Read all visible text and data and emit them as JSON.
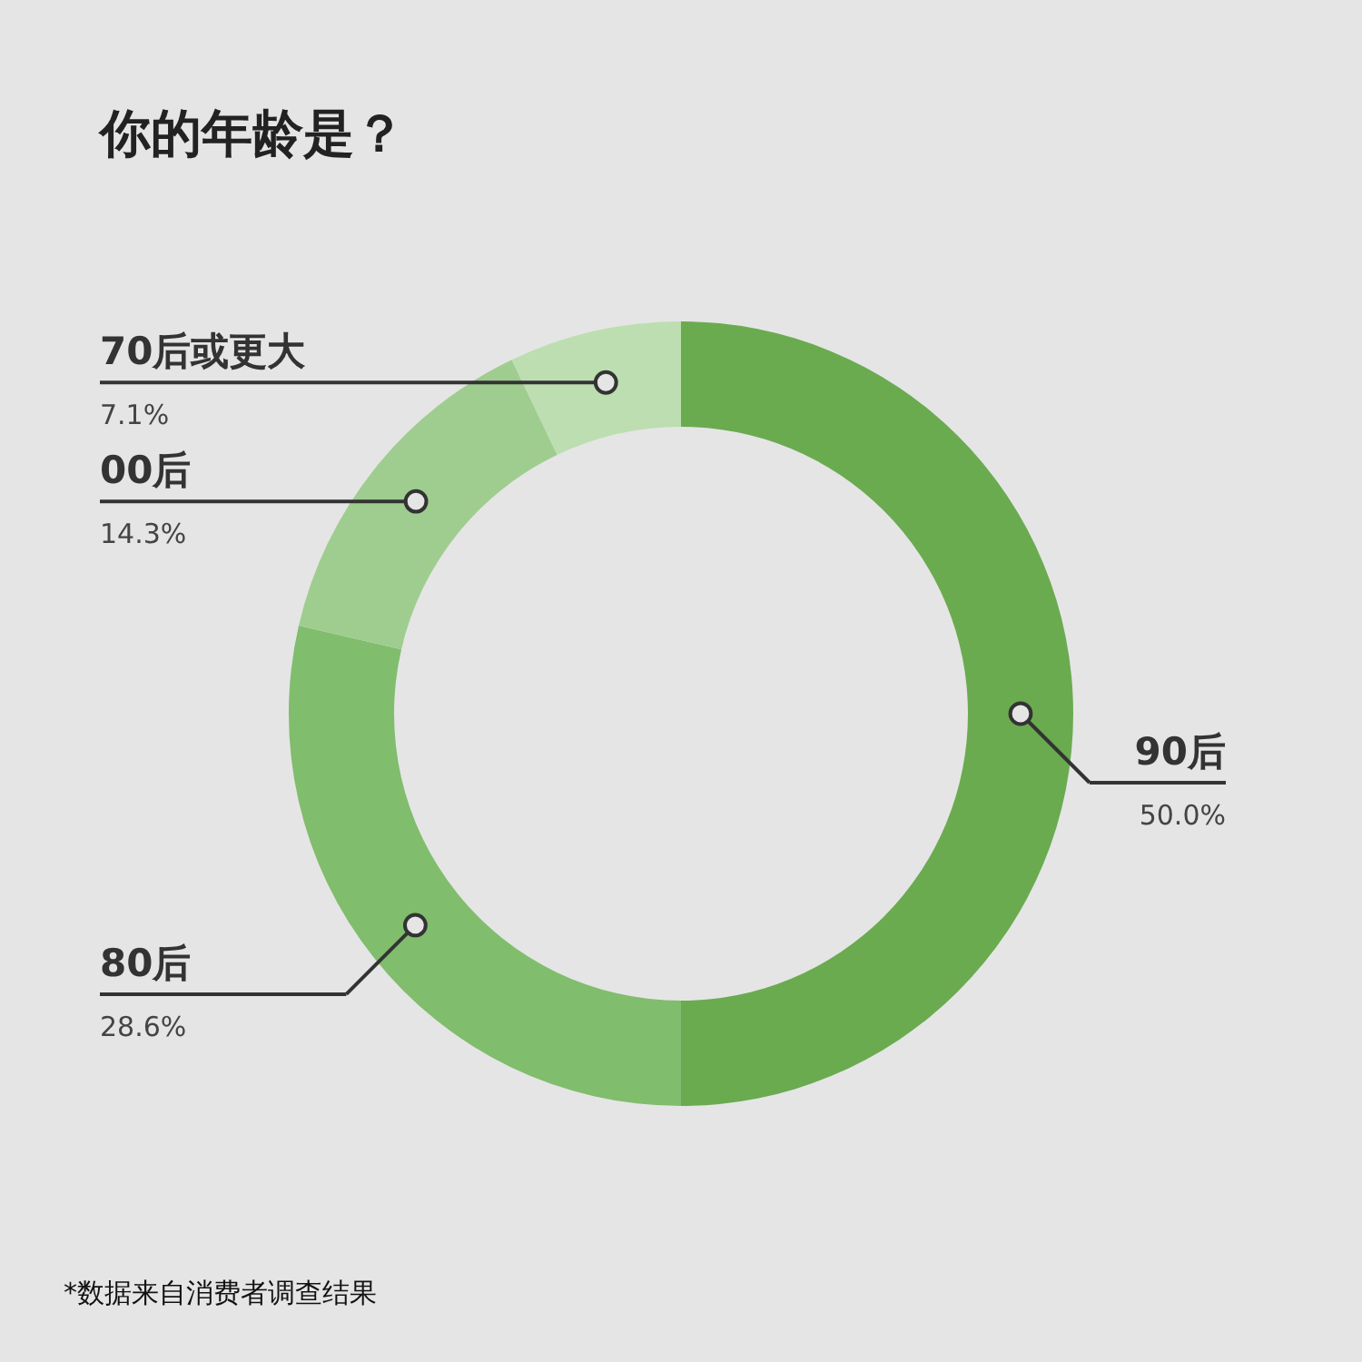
{
  "chart_data": {
    "type": "donut",
    "title": "你的年龄是？",
    "categories": [
      "90后",
      "80后",
      "00后",
      "70后或更大"
    ],
    "values": [
      50.0,
      28.6,
      14.3,
      7.1
    ],
    "value_labels": [
      "50.0%",
      "28.6%",
      "14.3%",
      "7.1%"
    ],
    "colors": [
      "#6aab50",
      "#80bd6d",
      "#9fcd8f",
      "#bcdeb0"
    ],
    "annotations": [
      "*数据来自消费者调查结果"
    ]
  }
}
